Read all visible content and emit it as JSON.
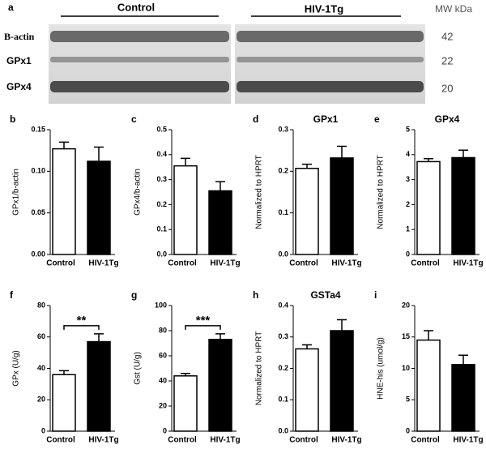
{
  "blot": {
    "panel": "a",
    "groups": [
      "Control",
      "HIV-1Tg"
    ],
    "mw_header": "MW kDa",
    "rows": [
      {
        "label": "B-actin",
        "mw": "42"
      },
      {
        "label": "GPx1",
        "mw": "22"
      },
      {
        "label": "GPx4",
        "mw": "20"
      }
    ]
  },
  "chart_data": [
    {
      "type": "bar",
      "panel": "b",
      "ylabel": "GPx1/b-actin",
      "categories": [
        "Control",
        "HIV-1Tg"
      ],
      "values": [
        0.127,
        0.112
      ],
      "errors": [
        0.008,
        0.017
      ],
      "colors": [
        "#ffffff",
        "#000000"
      ],
      "ylim": [
        0,
        0.15
      ],
      "yticks": [
        {
          "value": 0,
          "label": "0.00"
        },
        {
          "value": 0.05,
          "label": "0.05"
        },
        {
          "value": 0.1,
          "label": "0.10"
        },
        {
          "value": 0.15,
          "label": "0.15"
        }
      ]
    },
    {
      "type": "bar",
      "panel": "c",
      "ylabel": "GPx4/b-actin",
      "categories": [
        "Control",
        "HIV-1Tg"
      ],
      "values": [
        0.355,
        0.255
      ],
      "errors": [
        0.03,
        0.037
      ],
      "colors": [
        "#ffffff",
        "#000000"
      ],
      "ylim": [
        0,
        0.5
      ],
      "yticks": [
        {
          "value": 0,
          "label": "0.0"
        },
        0.1,
        0.2,
        0.3,
        0.4,
        0.5
      ]
    },
    {
      "type": "bar",
      "panel": "d",
      "title": "GPx1",
      "ylabel": "Normalized to HPRT",
      "categories": [
        "Control",
        "HIV-1Tg"
      ],
      "values": [
        0.207,
        0.232
      ],
      "errors": [
        0.01,
        0.028
      ],
      "colors": [
        "#ffffff",
        "#000000"
      ],
      "ylim": [
        0,
        0.3
      ],
      "yticks": [
        {
          "value": 0,
          "label": "0.0"
        },
        0.1,
        0.2,
        0.3
      ]
    },
    {
      "type": "bar",
      "panel": "e",
      "title": "GPx4",
      "ylabel": "Normalized to HPRT",
      "categories": [
        "Control",
        "HIV-1Tg"
      ],
      "values": [
        3.72,
        3.88
      ],
      "errors": [
        0.12,
        0.3
      ],
      "colors": [
        "#ffffff",
        "#000000"
      ],
      "ylim": [
        0,
        5
      ],
      "yticks": [
        0,
        1,
        2,
        3,
        4,
        5
      ]
    },
    {
      "type": "bar",
      "panel": "f",
      "ylabel": "GPx (U/g)",
      "annotation": "**",
      "categories": [
        "Control",
        "HIV-1Tg"
      ],
      "values": [
        36,
        57
      ],
      "errors": [
        2.5,
        5
      ],
      "colors": [
        "#ffffff",
        "#000000"
      ],
      "ylim": [
        0,
        80
      ],
      "yticks": [
        0,
        20,
        40,
        60,
        80
      ]
    },
    {
      "type": "bar",
      "panel": "g",
      "ylabel": "Gst (U/g)",
      "annotation": "***",
      "categories": [
        "Control",
        "HIV-1Tg"
      ],
      "values": [
        44,
        73
      ],
      "errors": [
        2,
        4.5
      ],
      "colors": [
        "#ffffff",
        "#000000"
      ],
      "ylim": [
        0,
        100
      ],
      "yticks": [
        0,
        20,
        40,
        60,
        80,
        100
      ]
    },
    {
      "type": "bar",
      "panel": "h",
      "title": "GSTa4",
      "ylabel": "Normalized to HPRT",
      "categories": [
        "Control",
        "HIV-1Tg"
      ],
      "values": [
        0.262,
        0.32
      ],
      "errors": [
        0.013,
        0.035
      ],
      "colors": [
        "#ffffff",
        "#000000"
      ],
      "ylim": [
        0,
        0.4
      ],
      "yticks": [
        {
          "value": 0,
          "label": "0.0"
        },
        0.1,
        0.2,
        0.3,
        0.4
      ]
    },
    {
      "type": "bar",
      "panel": "i",
      "ylabel": "HNE-his (umol/g)",
      "categories": [
        "Control",
        "HIV-1Tg"
      ],
      "values": [
        14.5,
        10.6
      ],
      "errors": [
        1.5,
        1.5
      ],
      "colors": [
        "#ffffff",
        "#000000"
      ],
      "ylim": [
        0,
        20
      ],
      "yticks": [
        0,
        5,
        10,
        15,
        20
      ]
    }
  ]
}
